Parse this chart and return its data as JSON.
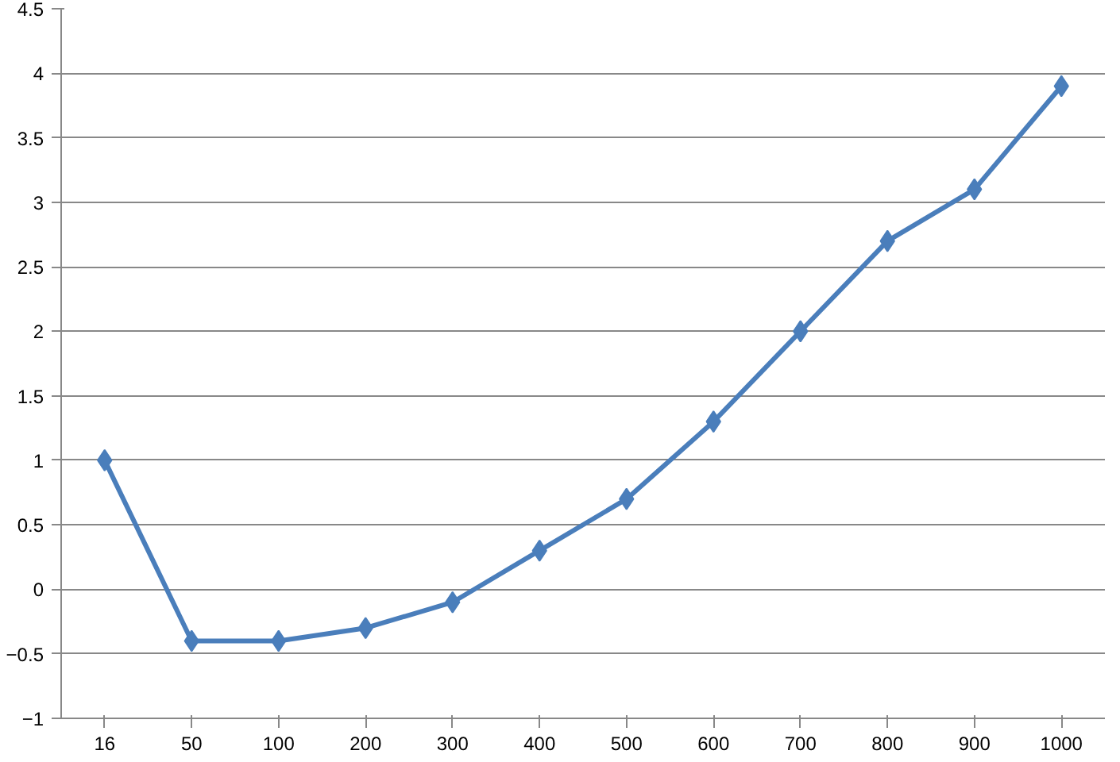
{
  "chart_data": {
    "type": "line",
    "categories": [
      "16",
      "50",
      "100",
      "200",
      "300",
      "400",
      "500",
      "600",
      "700",
      "800",
      "900",
      "1000"
    ],
    "series": [
      {
        "color": "#4a7ebb",
        "values": [
          1,
          -0.4,
          -0.4,
          -0.3,
          -0.1,
          0.3,
          0.7,
          1.3,
          2,
          2.7,
          3.1,
          3.9
        ]
      }
    ],
    "ylim": [
      -1,
      4.5
    ],
    "yticks": [
      -1,
      -0.5,
      0,
      0.5,
      1,
      1.5,
      2,
      2.5,
      3,
      3.5,
      4,
      4.5
    ],
    "grid": "y",
    "marker": "diamond",
    "line_style": "solid"
  }
}
